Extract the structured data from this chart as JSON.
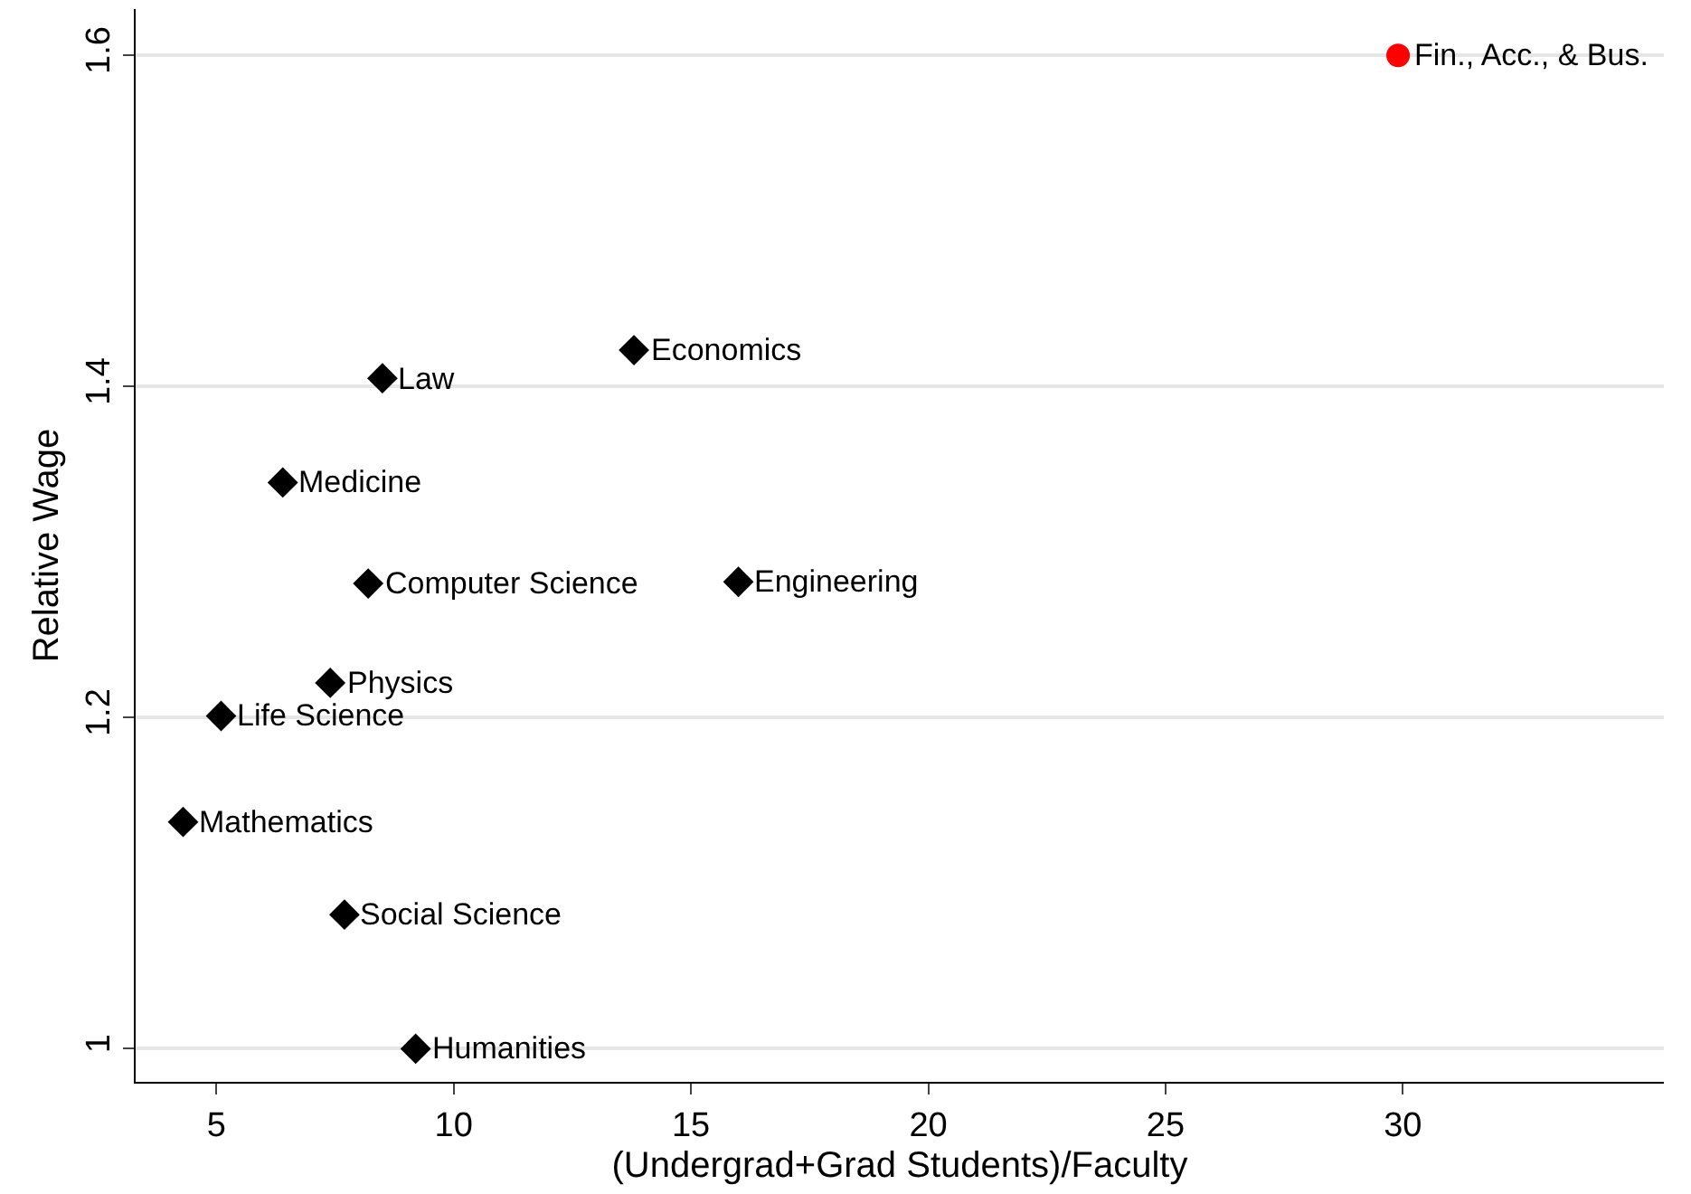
{
  "chart_data": {
    "type": "scatter",
    "xlabel": "(Undergrad+Grad Students)/Faculty",
    "ylabel": "Relative Wage",
    "series": [
      {
        "color": "#000000",
        "marker": "diamond",
        "x": [
          13.8,
          8.5,
          6.4,
          8.2,
          16.0,
          7.4,
          5.1,
          4.3,
          7.7,
          9.2
        ],
        "values": [
          1.422,
          1.405,
          1.342,
          1.281,
          1.282,
          1.221,
          1.201,
          1.137,
          1.081,
          1.0
        ]
      },
      {
        "color": "#ff0000",
        "marker": "circle",
        "x": [
          29.9
        ],
        "values": [
          1.6
        ]
      }
    ],
    "annotations": [
      {
        "text": "Economics",
        "x": 13.8,
        "y": 1.422
      },
      {
        "text": "Law",
        "x": 8.5,
        "y": 1.405
      },
      {
        "text": "Medicine",
        "x": 6.4,
        "y": 1.342
      },
      {
        "text": "Computer Science",
        "x": 8.2,
        "y": 1.281
      },
      {
        "text": "Engineering",
        "x": 16.0,
        "y": 1.282
      },
      {
        "text": "Physics",
        "x": 7.4,
        "y": 1.221
      },
      {
        "text": "Life Science",
        "x": 5.1,
        "y": 1.201
      },
      {
        "text": "Mathematics",
        "x": 4.3,
        "y": 1.137
      },
      {
        "text": "Social Science",
        "x": 7.7,
        "y": 1.081
      },
      {
        "text": "Humanities",
        "x": 9.2,
        "y": 1.0
      },
      {
        "text": "Fin., Acc., & Bus.",
        "x": 29.9,
        "y": 1.6
      }
    ],
    "xlim": [
      3.3,
      35.5
    ],
    "xticks": [
      5,
      10,
      15,
      20,
      25,
      30
    ],
    "ylim": [
      0.98,
      1.628
    ],
    "yticks": [
      1,
      1.2,
      1.4,
      1.6
    ],
    "grid": "y"
  }
}
